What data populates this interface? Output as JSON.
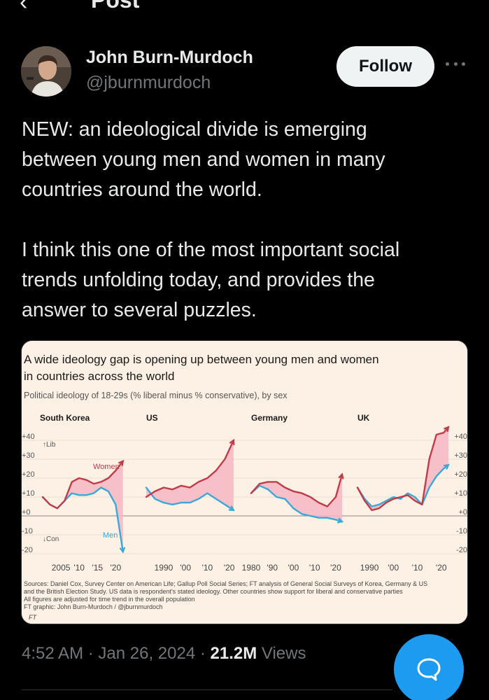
{
  "header": {
    "back_icon": "arrow-left-icon",
    "title": "Post"
  },
  "author": {
    "name": "John Burn-Murdoch",
    "handle": "@jburnmurdoch",
    "follow_label": "Follow",
    "more_icon": "more-dots-icon"
  },
  "post": {
    "paragraphs": [
      [
        "NEW: an ideological divide is emerging",
        "between young men and women in many",
        "countries around the world."
      ],
      [
        "I think this one of the most important social",
        "trends unfolding today, and provides the",
        "answer to several puzzles."
      ]
    ],
    "timestamp": "4:52 AM · Jan 26, 2024 · ",
    "views_count": "21.2M",
    "views_label": " Views"
  },
  "colors": {
    "women": "#c13c49",
    "men": "#3ba9d8",
    "gap_fill": "#f6b6c3",
    "chart_bg": "#fdf1e5",
    "accent": "#1d9bf0"
  },
  "chart_data": {
    "type": "line",
    "title": "A wide ideology gap is opening up between young men and women in countries across the world",
    "title_lines": [
      "A wide ideology gap is opening up between young men and women",
      "in countries across the world"
    ],
    "subtitle": "Political ideology of 18-29s (% liberal minus % conservative), by sex",
    "ylim": [
      -20,
      40
    ],
    "y_ticks": [
      "+40",
      "+30",
      "+20",
      "+10",
      "+0",
      "-10",
      "-20"
    ],
    "annotations": {
      "lib": "↑Lib",
      "con": "↓Con",
      "women": "Women",
      "men": "Men"
    },
    "panels": [
      {
        "name": "South Korea",
        "xlim": [
          2000,
          2023
        ],
        "x_ticks": [
          {
            "x": 2005,
            "label": "2005"
          },
          {
            "x": 2010,
            "label": "'10"
          },
          {
            "x": 2015,
            "label": "'15"
          },
          {
            "x": 2020,
            "label": "'20"
          }
        ],
        "series": [
          {
            "name": "Women",
            "x": [
              2000,
              2002,
              2004,
              2006,
              2008,
              2010,
              2012,
              2014,
              2016,
              2018,
              2020,
              2022
            ],
            "values": [
              10,
              6,
              4,
              8,
              18,
              20,
              19,
              17,
              18,
              20,
              24,
              29
            ]
          },
          {
            "name": "Men",
            "x": [
              2000,
              2002,
              2004,
              2006,
              2008,
              2010,
              2012,
              2014,
              2016,
              2018,
              2020,
              2022
            ],
            "values": [
              10,
              6,
              4,
              8,
              12,
              11,
              11,
              12,
              15,
              13,
              6,
              -19
            ]
          }
        ]
      },
      {
        "name": "US",
        "xlim": [
          1982,
          2023
        ],
        "x_ticks": [
          {
            "x": 1990,
            "label": "1990"
          },
          {
            "x": 2000,
            "label": "'00"
          },
          {
            "x": 2010,
            "label": "'10"
          },
          {
            "x": 2020,
            "label": "'20"
          }
        ],
        "series": [
          {
            "name": "Women",
            "x": [
              1982,
              1986,
              1990,
              1994,
              1998,
              2002,
              2006,
              2010,
              2014,
              2018,
              2022
            ],
            "values": [
              10,
              13,
              15,
              14,
              16,
              15,
              18,
              20,
              24,
              30,
              40
            ]
          },
          {
            "name": "Men",
            "x": [
              1982,
              1986,
              1990,
              1994,
              1998,
              2002,
              2006,
              2010,
              2014,
              2018,
              2022
            ],
            "values": [
              15,
              9,
              7,
              6,
              7,
              7,
              9,
              12,
              9,
              6,
              3
            ]
          }
        ]
      },
      {
        "name": "Germany",
        "xlim": [
          1980,
          2023
        ],
        "x_ticks": [
          {
            "x": 1980,
            "label": "1980"
          },
          {
            "x": 1990,
            "label": "'90"
          },
          {
            "x": 2000,
            "label": "'00"
          },
          {
            "x": 2010,
            "label": "'10"
          },
          {
            "x": 2020,
            "label": "'20"
          }
        ],
        "series": [
          {
            "name": "Women",
            "x": [
              1980,
              1984,
              1988,
              1992,
              1996,
              2000,
              2004,
              2008,
              2012,
              2016,
              2020,
              2023
            ],
            "values": [
              12,
              17,
              18,
              18,
              15,
              13,
              12,
              10,
              7,
              5,
              10,
              22
            ]
          },
          {
            "name": "Men",
            "x": [
              1980,
              1984,
              1988,
              1992,
              1996,
              2000,
              2004,
              2008,
              2012,
              2016,
              2020,
              2023
            ],
            "values": [
              12,
              16,
              14,
              10,
              9,
              4,
              1,
              0,
              -1,
              -1,
              -2,
              -3
            ]
          }
        ]
      },
      {
        "name": "UK",
        "xlim": [
          1985,
          2023
        ],
        "x_ticks": [
          {
            "x": 1990,
            "label": "1990"
          },
          {
            "x": 2000,
            "label": "'00"
          },
          {
            "x": 2010,
            "label": "'10"
          },
          {
            "x": 2020,
            "label": "'20"
          }
        ],
        "series": [
          {
            "name": "Women",
            "x": [
              1985,
              1988,
              1991,
              1994,
              1997,
              2000,
              2003,
              2006,
              2009,
              2012,
              2015,
              2018,
              2021,
              2023
            ],
            "values": [
              15,
              8,
              3,
              4,
              7,
              9,
              10,
              11,
              8,
              6,
              30,
              43,
              44,
              47
            ]
          },
          {
            "name": "Men",
            "x": [
              1985,
              1988,
              1991,
              1994,
              1997,
              2000,
              2003,
              2006,
              2009,
              2012,
              2015,
              2018,
              2021,
              2023
            ],
            "values": [
              15,
              9,
              5,
              6,
              8,
              10,
              9,
              12,
              10,
              6,
              15,
              21,
              25,
              27
            ]
          }
        ]
      }
    ],
    "sources": [
      "Sources: Daniel Cox, Survey Center on American Life; Gallup Poll Social Series; FT analysis of General Social Surveys of Korea, Germany & US",
      "and the British Election Study. US data is respondent's stated ideology. Other countries show support for liberal and conservative parties",
      "All figures are adjusted for time trend in the overall population",
      "FT graphic: John Burn-Murdoch / @jburnmurdoch"
    ],
    "logo_text": "FT"
  }
}
